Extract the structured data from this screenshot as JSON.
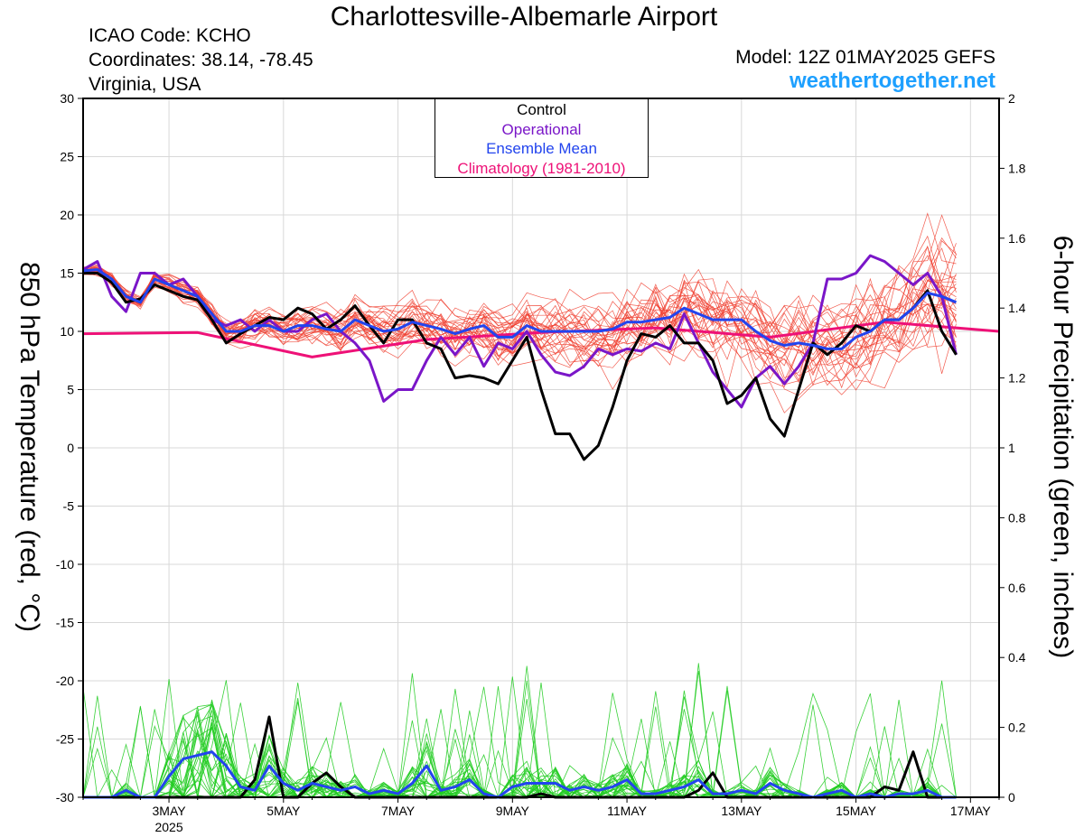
{
  "header": {
    "title": "Charlottesville-Albemarle Airport",
    "icao": "ICAO Code: KCHO",
    "coordinates": "Coordinates: 38.14, -78.45",
    "region": "Virginia, USA",
    "model": "Model: 12Z 01MAY2025 GEFS",
    "site": "weathertogether.net"
  },
  "legend": {
    "control": "Control",
    "operational": "Operational",
    "mean": "Ensemble Mean",
    "climatology": "Climatology (1981-2010)"
  },
  "colors": {
    "control": "#000000",
    "operational": "#7a16c8",
    "mean": "#2244ee",
    "climatology": "#ee1177",
    "members_temp": "#f04030",
    "members_precip": "#22cc22"
  },
  "chart_data": {
    "type": "line",
    "title": "Charlottesville-Albemarle Airport",
    "ylabel_left": "850 hPa Temperature (red, °C)",
    "ylabel_right": "6-hour Precipitation (green, inches)",
    "ylim_left": [
      -30,
      30
    ],
    "ylim_right": [
      0,
      2
    ],
    "yticks_left": [
      "30",
      "25",
      "20",
      "15",
      "10",
      "5",
      "0",
      "-5",
      "-10",
      "-15",
      "-20",
      "-25",
      "-30"
    ],
    "yticks_right": [
      "2",
      "1.8",
      "1.6",
      "1.4",
      "1.2",
      "1",
      "0.8",
      "0.6",
      "0.4",
      "0.2",
      "0"
    ],
    "x_start_hours": 12,
    "x_end_hours": 396,
    "xticks": [
      {
        "hour": 48,
        "label": "3MAY",
        "sub": "2025"
      },
      {
        "hour": 96,
        "label": "5MAY"
      },
      {
        "hour": 144,
        "label": "7MAY"
      },
      {
        "hour": 192,
        "label": "9MAY"
      },
      {
        "hour": 240,
        "label": "11MAY"
      },
      {
        "hour": 288,
        "label": "13MAY"
      },
      {
        "hour": 336,
        "label": "15MAY"
      },
      {
        "hour": 384,
        "label": "17MAY"
      }
    ],
    "step_hours": 6,
    "series": [
      {
        "name": "Control",
        "axis": "left",
        "values": [
          15,
          15,
          14.2,
          12.5,
          12.8,
          14,
          13.5,
          13,
          12.7,
          11,
          9,
          9.8,
          10.5,
          11.2,
          11,
          12,
          11.5,
          10.2,
          11,
          12.2,
          10.5,
          9,
          11,
          11,
          9,
          8.5,
          6,
          6.2,
          6,
          5.5,
          7.5,
          9.5,
          5,
          1.2,
          1.2,
          -1,
          0.2,
          3.5,
          7.5,
          9.8,
          9.5,
          10.5,
          9,
          9,
          7.5,
          3.8,
          4.5,
          6,
          2.5,
          1,
          5,
          9,
          8,
          9,
          10.5,
          10,
          11,
          11,
          12,
          13.5,
          10,
          8
        ]
      },
      {
        "name": "Operational",
        "axis": "left",
        "values": [
          15.3,
          16,
          13,
          11.7,
          15,
          15,
          14,
          14.5,
          13,
          11,
          10.5,
          11,
          10,
          11,
          10,
          10,
          11,
          11.5,
          10,
          9,
          7.5,
          4,
          5,
          5,
          7.5,
          9.5,
          8,
          9.5,
          7,
          9,
          8.5,
          10,
          8,
          6.5,
          6.2,
          7,
          8.5,
          8,
          8.5,
          8.3,
          9,
          8.5,
          11.5,
          9,
          6.5,
          5,
          3.5,
          6,
          7,
          5.5,
          7,
          9,
          14.5,
          14.5,
          15,
          16.5,
          16,
          15,
          14,
          15,
          13,
          8
        ]
      },
      {
        "name": "Ensemble Mean",
        "axis": "left",
        "values": [
          15.2,
          15.3,
          14.5,
          13,
          12.5,
          14.5,
          14,
          13.5,
          13,
          11.5,
          10,
          10,
          10.5,
          10.5,
          10,
          10.5,
          10.5,
          10.2,
          10,
          11,
          10.5,
          10,
          10.2,
          10.8,
          10.5,
          10.2,
          9.8,
          10.2,
          10.5,
          9.5,
          9.5,
          10.5,
          10,
          10,
          10,
          10,
          10,
          10.2,
          10.8,
          10.8,
          11,
          11.2,
          12,
          11.5,
          11,
          11,
          11,
          10,
          9.2,
          8.8,
          9,
          8.8,
          8.5,
          8.5,
          9.5,
          10,
          11,
          11,
          12,
          13.3,
          13,
          12.5
        ]
      },
      {
        "name": "Climatology (1981-2010)",
        "axis": "left",
        "x_hours": [
          12,
          60,
          108,
          156,
          204,
          252,
          300,
          348,
          396
        ],
        "values": [
          9.8,
          9.9,
          7.8,
          9.3,
          9.9,
          10.3,
          9.5,
          10.8,
          10
        ]
      },
      {
        "name": "Control",
        "axis": "right",
        "values": [
          0,
          0,
          0,
          0,
          0,
          0,
          0,
          0,
          0,
          0,
          0,
          0,
          0.05,
          0.23,
          0,
          0,
          0.04,
          0.07,
          0.03,
          0,
          0,
          0,
          0,
          0,
          0,
          0,
          0,
          0,
          0,
          0,
          0,
          0,
          0.01,
          0,
          0,
          0,
          0,
          0,
          0,
          0,
          0,
          0,
          0,
          0.02,
          0.07,
          0,
          0,
          0,
          0,
          0,
          0,
          0,
          0,
          0,
          0,
          0,
          0.03,
          0.02,
          0.13,
          0,
          0,
          0
        ]
      },
      {
        "name": "Ensemble Mean",
        "axis": "right",
        "values": [
          0,
          0,
          0,
          0.02,
          0,
          0,
          0.06,
          0.11,
          0.12,
          0.13,
          0.09,
          0.03,
          0.02,
          0.09,
          0.04,
          0.02,
          0.04,
          0.03,
          0.02,
          0.03,
          0.01,
          0.02,
          0.01,
          0.04,
          0.09,
          0.02,
          0.03,
          0.05,
          0.01,
          0,
          0.03,
          0.04,
          0.04,
          0.04,
          0.02,
          0.03,
          0.02,
          0.03,
          0.05,
          0.01,
          0.01,
          0.02,
          0.03,
          0.05,
          0.01,
          0.01,
          0.02,
          0.01,
          0.04,
          0.02,
          0.01,
          0,
          0.01,
          0.02,
          0,
          0.01,
          0,
          0.01,
          0.01,
          0.02,
          0,
          0
        ]
      }
    ]
  }
}
